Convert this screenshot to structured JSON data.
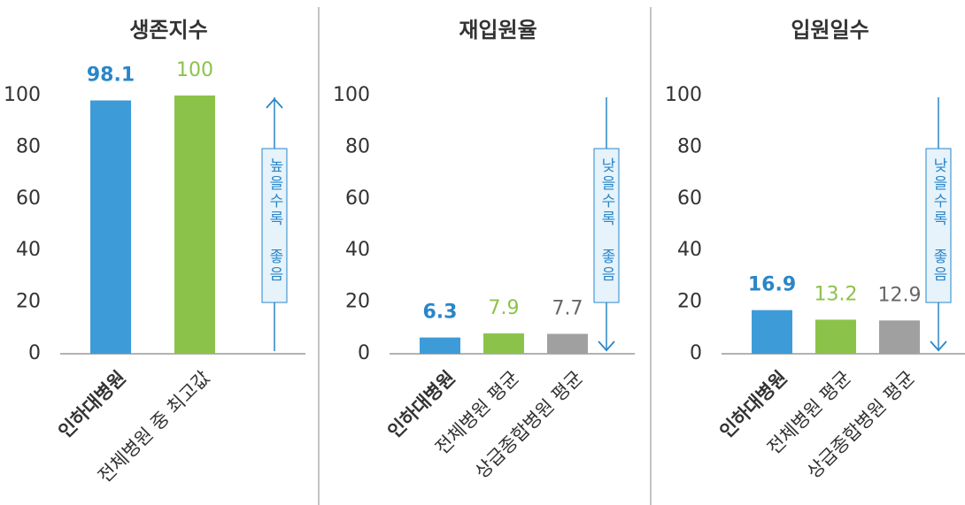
{
  "chart_data": [
    {
      "type": "bar",
      "title": "생존지수",
      "categories": [
        "인하대병원",
        "전체병원 중 최고값"
      ],
      "values": [
        98.1,
        100
      ],
      "colors": [
        "#3d9cd8",
        "#8bc34a"
      ],
      "label_colors": [
        "#2a86c8",
        "#8bc34a"
      ],
      "ylim": [
        0,
        100
      ],
      "yticks": [
        0,
        20,
        40,
        60,
        80,
        100
      ],
      "annotation": "높을수록 좋음",
      "arrow_direction": "up"
    },
    {
      "type": "bar",
      "title": "재입원율",
      "categories": [
        "인하대병원",
        "전체병원 평균",
        "상급종합병원 평균"
      ],
      "values": [
        6.3,
        7.9,
        7.7
      ],
      "colors": [
        "#3d9cd8",
        "#8bc34a",
        "#a0a0a0"
      ],
      "label_colors": [
        "#2a86c8",
        "#8bc34a",
        "#666666"
      ],
      "ylim": [
        0,
        100
      ],
      "yticks": [
        0,
        20,
        40,
        60,
        80,
        100
      ],
      "annotation": "낮을수록 좋음",
      "arrow_direction": "down"
    },
    {
      "type": "bar",
      "title": "입원일수",
      "categories": [
        "인하대병원",
        "전체병원 평균",
        "상급종합병원 평균"
      ],
      "values": [
        16.9,
        13.2,
        12.9
      ],
      "colors": [
        "#3d9cd8",
        "#8bc34a",
        "#a0a0a0"
      ],
      "label_colors": [
        "#2a86c8",
        "#8bc34a",
        "#666666"
      ],
      "ylim": [
        0,
        100
      ],
      "yticks": [
        0,
        20,
        40,
        60,
        80,
        100
      ],
      "annotation": "낮을수록 좋음",
      "arrow_direction": "down"
    }
  ]
}
